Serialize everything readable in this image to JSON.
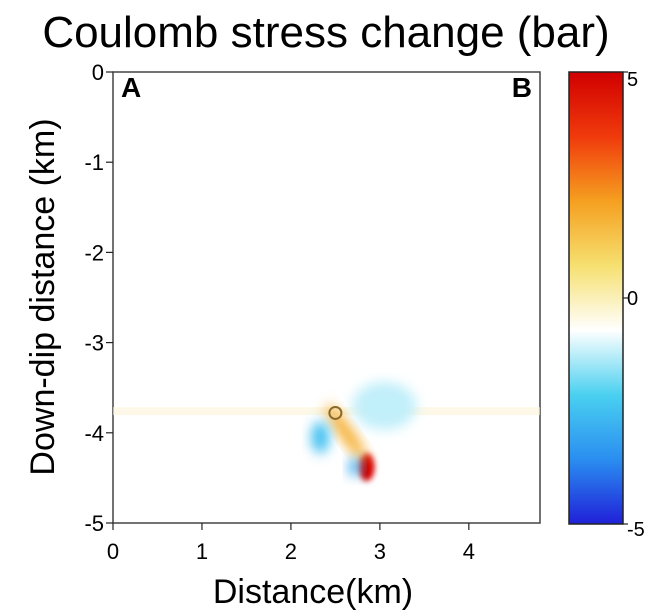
{
  "chart_data": {
    "type": "heatmap",
    "title": "Coulomb stress change (bar)",
    "xlabel": "Distance(km)",
    "ylabel": "Down-dip distance (km)",
    "xlim": [
      0,
      4.8
    ],
    "ylim": [
      -5,
      0
    ],
    "x_ticks": [
      0,
      1,
      2,
      3,
      4
    ],
    "y_ticks": [
      0,
      -1,
      -2,
      -3,
      -4,
      -5
    ],
    "corner_labels": {
      "left": "A",
      "right": "B"
    },
    "colorbar": {
      "min": -5,
      "max": 5,
      "tick_labels": [
        "5",
        "0",
        "-5"
      ],
      "colors": [
        "#2020d8",
        "#2a8ef0",
        "#4ad0f0",
        "#ffffff",
        "#f6e070",
        "#f5a020",
        "#f03a0c",
        "#d00000"
      ]
    },
    "background_value": 0,
    "features": [
      {
        "kind": "positive-lobe",
        "x": 2.85,
        "y": -4.38,
        "value": 5
      },
      {
        "kind": "positive-streak",
        "x": 2.62,
        "y": -4.0,
        "value": 1.8
      },
      {
        "kind": "negative-lobe",
        "x": 3.05,
        "y": -3.7,
        "value": -1.2
      },
      {
        "kind": "negative-lobe",
        "x": 2.33,
        "y": -4.05,
        "value": -2.5
      },
      {
        "kind": "negative-lobe",
        "x": 2.72,
        "y": -4.38,
        "value": -3.0
      }
    ],
    "hypocenter": {
      "x": 2.5,
      "y": -3.78
    }
  }
}
